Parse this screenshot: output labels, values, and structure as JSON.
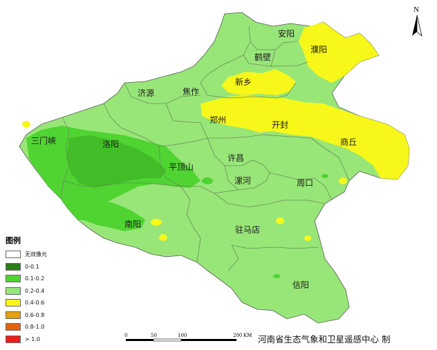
{
  "map": {
    "north_letter": "N",
    "labels": {
      "anyang": "安阳",
      "hebi": "鹤壁",
      "puyang": "濮阳",
      "xinxiang": "新乡",
      "jiyuan": "济源",
      "jiaozuo": "焦作",
      "zhengzhou": "郑州",
      "kaifeng": "开封",
      "sanmenxia": "三门峡",
      "luoyang": "洛阳",
      "shangqiu": "商丘",
      "xuchang": "许昌",
      "pingdingshan": "平顶山",
      "luohe": "漯河",
      "zhoukou": "周口",
      "nanyang": "南阳",
      "zhumadian": "驻马店",
      "xinyang": "信阳"
    }
  },
  "legend": {
    "title": "图例",
    "items": [
      {
        "label": "无效像元",
        "color": "#ffffff"
      },
      {
        "label": "0-0.1",
        "color": "#2e7d1b"
      },
      {
        "label": "0.1-0.2",
        "color": "#4fd432"
      },
      {
        "label": "0.2-0.4",
        "color": "#98e678"
      },
      {
        "label": "0.4-0.6",
        "color": "#f7f71a"
      },
      {
        "label": "0.6-0.8",
        "color": "#e8a10c"
      },
      {
        "label": "0.8-1.0",
        "color": "#e4620c"
      },
      {
        "label": "> 1.0",
        "color": "#ee1c1c"
      }
    ]
  },
  "scale": {
    "ticks": [
      "0",
      "50",
      "100",
      "200"
    ],
    "unit": "KM"
  },
  "credit": "河南省生态气象和卫星遥感中心 制",
  "colors": {
    "base": "#98e678",
    "dark": "#4fd432",
    "yellow": "#f7f71a",
    "border": "#6a8a5a"
  }
}
